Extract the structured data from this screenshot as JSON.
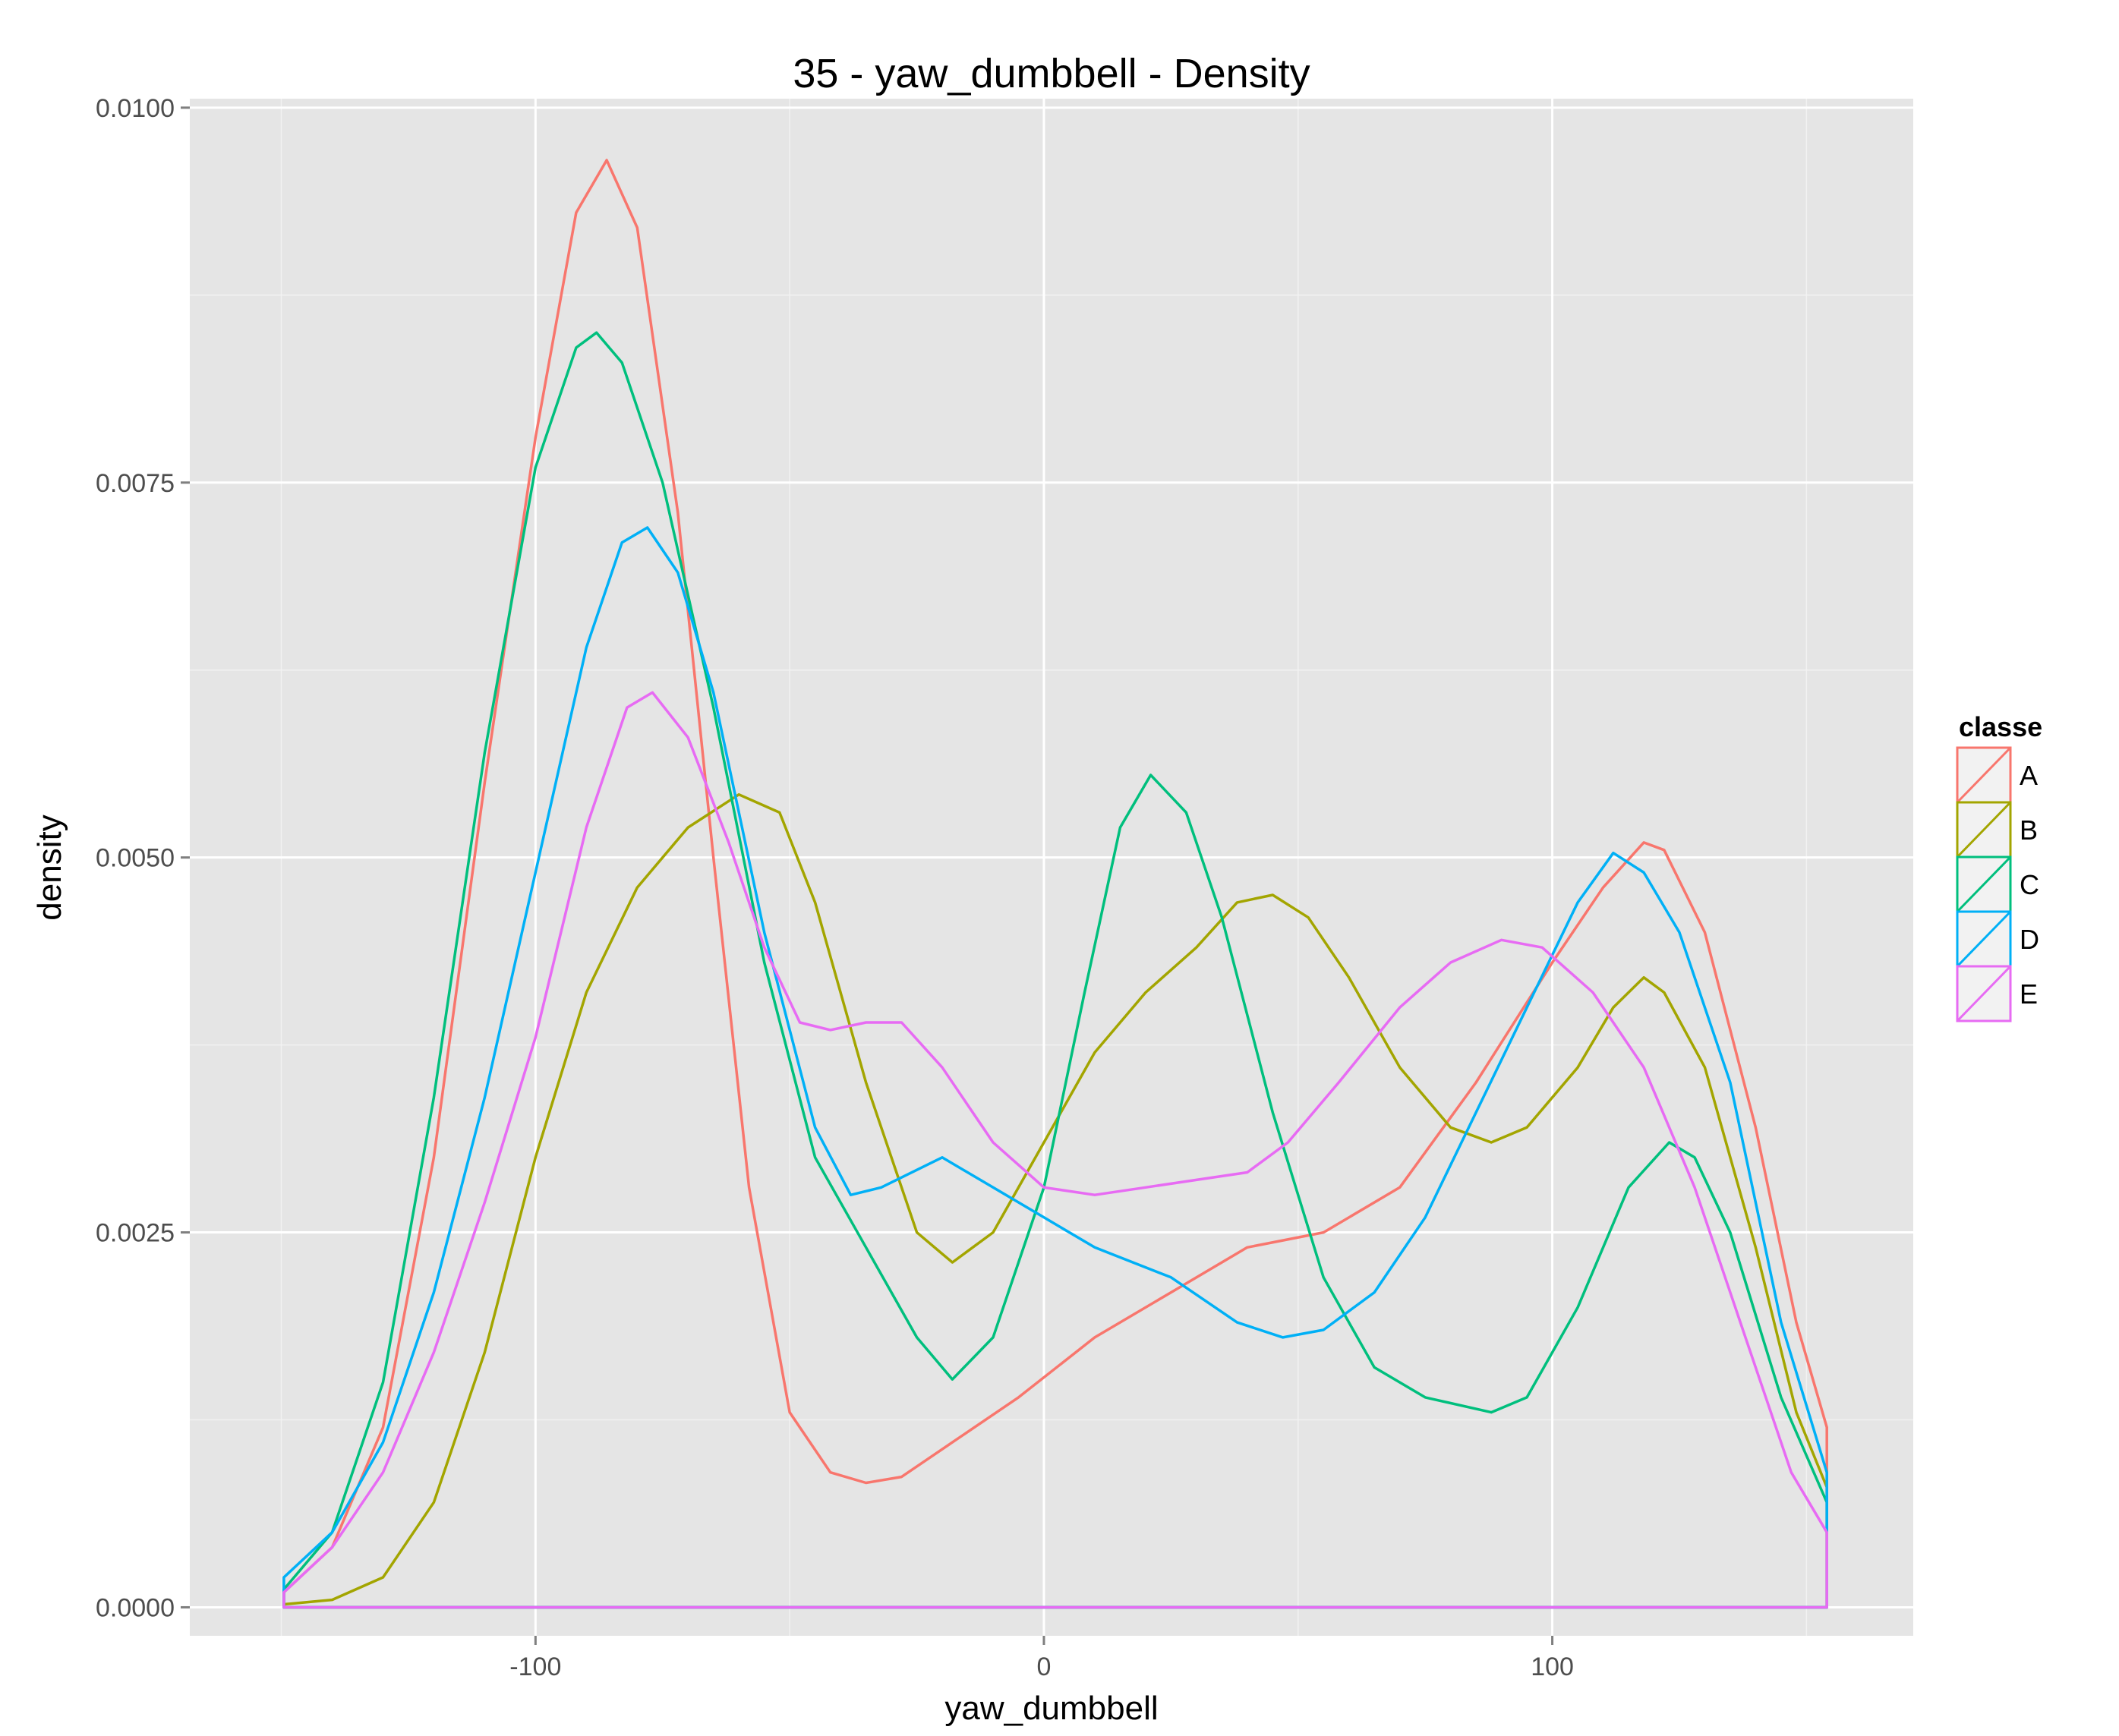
{
  "chart_data": {
    "type": "line",
    "title": "35 - yaw_dumbbell - Density",
    "xlabel": "yaw_dumbbell",
    "ylabel": "density",
    "xlim": [
      -168,
      171
    ],
    "ylim": [
      -0.00019,
      0.01006
    ],
    "x_ticks": [
      -100,
      0,
      100
    ],
    "x_tick_labels": [
      "-100",
      "0",
      "100"
    ],
    "y_ticks": [
      0.0,
      0.0025,
      0.005,
      0.0075,
      0.01
    ],
    "y_tick_labels": [
      "0.0000",
      "0.0025",
      "0.0050",
      "0.0075",
      "0.0100"
    ],
    "x_range": [
      -149.5,
      154
    ],
    "grid": true,
    "legend": {
      "title": "classe",
      "position": "right",
      "entries": [
        "A",
        "B",
        "C",
        "D",
        "E"
      ]
    },
    "series": [
      {
        "name": "A",
        "color": "#F8766D",
        "points": [
          [
            -149.5,
            0.0001
          ],
          [
            -140,
            0.0004
          ],
          [
            -130,
            0.0012
          ],
          [
            -120,
            0.003
          ],
          [
            -110,
            0.0055
          ],
          [
            -100,
            0.0078
          ],
          [
            -92,
            0.0093
          ],
          [
            -86,
            0.00965
          ],
          [
            -80,
            0.0092
          ],
          [
            -72,
            0.0073
          ],
          [
            -65,
            0.005
          ],
          [
            -58,
            0.0028
          ],
          [
            -50,
            0.0013
          ],
          [
            -42,
            0.0009
          ],
          [
            -35,
            0.00083
          ],
          [
            -28,
            0.00087
          ],
          [
            -18,
            0.0011
          ],
          [
            -5,
            0.0014
          ],
          [
            10,
            0.0018
          ],
          [
            25,
            0.0021
          ],
          [
            40,
            0.0024
          ],
          [
            55,
            0.0025
          ],
          [
            70,
            0.0028
          ],
          [
            85,
            0.0035
          ],
          [
            100,
            0.0043
          ],
          [
            110,
            0.0048
          ],
          [
            118,
            0.0051
          ],
          [
            122,
            0.00505
          ],
          [
            130,
            0.0045
          ],
          [
            140,
            0.0032
          ],
          [
            148,
            0.0019
          ],
          [
            154,
            0.0012
          ],
          [
            154,
            0.0
          ]
        ]
      },
      {
        "name": "B",
        "color": "#A3A500",
        "points": [
          [
            -149.5,
            2e-05
          ],
          [
            -140,
            5e-05
          ],
          [
            -130,
            0.0002
          ],
          [
            -120,
            0.0007
          ],
          [
            -110,
            0.0017
          ],
          [
            -100,
            0.003
          ],
          [
            -90,
            0.0041
          ],
          [
            -80,
            0.0048
          ],
          [
            -70,
            0.0052
          ],
          [
            -60,
            0.00542
          ],
          [
            -52,
            0.0053
          ],
          [
            -45,
            0.0047
          ],
          [
            -35,
            0.0035
          ],
          [
            -25,
            0.0025
          ],
          [
            -18,
            0.0023
          ],
          [
            -10,
            0.0025
          ],
          [
            0,
            0.0031
          ],
          [
            10,
            0.0037
          ],
          [
            20,
            0.0041
          ],
          [
            30,
            0.0044
          ],
          [
            38,
            0.0047
          ],
          [
            45,
            0.00475
          ],
          [
            52,
            0.0046
          ],
          [
            60,
            0.0042
          ],
          [
            70,
            0.0036
          ],
          [
            80,
            0.0032
          ],
          [
            88,
            0.0031
          ],
          [
            95,
            0.0032
          ],
          [
            105,
            0.0036
          ],
          [
            112,
            0.004
          ],
          [
            118,
            0.0042
          ],
          [
            122,
            0.0041
          ],
          [
            130,
            0.0036
          ],
          [
            140,
            0.0024
          ],
          [
            148,
            0.0013
          ],
          [
            154,
            0.0008
          ],
          [
            154,
            0.0
          ]
        ]
      },
      {
        "name": "C",
        "color": "#00BF7D",
        "points": [
          [
            -149.5,
            0.00012
          ],
          [
            -140,
            0.0005
          ],
          [
            -130,
            0.0015
          ],
          [
            -120,
            0.0034
          ],
          [
            -110,
            0.0057
          ],
          [
            -100,
            0.0076
          ],
          [
            -92,
            0.0084
          ],
          [
            -88,
            0.0085
          ],
          [
            -83,
            0.0083
          ],
          [
            -75,
            0.0075
          ],
          [
            -65,
            0.006
          ],
          [
            -55,
            0.0043
          ],
          [
            -45,
            0.003
          ],
          [
            -35,
            0.0024
          ],
          [
            -25,
            0.0018
          ],
          [
            -18,
            0.00152
          ],
          [
            -10,
            0.0018
          ],
          [
            0,
            0.0028
          ],
          [
            8,
            0.0041
          ],
          [
            15,
            0.0052
          ],
          [
            21,
            0.00555
          ],
          [
            28,
            0.0053
          ],
          [
            35,
            0.0046
          ],
          [
            45,
            0.0033
          ],
          [
            55,
            0.0022
          ],
          [
            65,
            0.0016
          ],
          [
            75,
            0.0014
          ],
          [
            88,
            0.0013
          ],
          [
            95,
            0.0014
          ],
          [
            105,
            0.002
          ],
          [
            115,
            0.0028
          ],
          [
            123,
            0.0031
          ],
          [
            128,
            0.003
          ],
          [
            135,
            0.0025
          ],
          [
            145,
            0.0014
          ],
          [
            154,
            0.0007
          ],
          [
            154,
            0.0
          ]
        ]
      },
      {
        "name": "D",
        "color": "#00B0F6",
        "points": [
          [
            -149.5,
            0.0002
          ],
          [
            -140,
            0.0005
          ],
          [
            -130,
            0.0011
          ],
          [
            -120,
            0.0021
          ],
          [
            -110,
            0.0034
          ],
          [
            -100,
            0.0049
          ],
          [
            -90,
            0.0064
          ],
          [
            -83,
            0.0071
          ],
          [
            -78,
            0.0072
          ],
          [
            -72,
            0.0069
          ],
          [
            -65,
            0.0061
          ],
          [
            -55,
            0.0045
          ],
          [
            -45,
            0.0032
          ],
          [
            -38,
            0.00275
          ],
          [
            -32,
            0.0028
          ],
          [
            -20,
            0.003
          ],
          [
            -10,
            0.0028
          ],
          [
            0,
            0.0026
          ],
          [
            10,
            0.0024
          ],
          [
            25,
            0.0022
          ],
          [
            38,
            0.0019
          ],
          [
            47,
            0.0018
          ],
          [
            55,
            0.00185
          ],
          [
            65,
            0.0021
          ],
          [
            75,
            0.0026
          ],
          [
            85,
            0.0033
          ],
          [
            95,
            0.004
          ],
          [
            105,
            0.0047
          ],
          [
            112,
            0.00503
          ],
          [
            118,
            0.0049
          ],
          [
            125,
            0.0045
          ],
          [
            135,
            0.0035
          ],
          [
            145,
            0.0019
          ],
          [
            154,
            0.0009
          ],
          [
            154,
            0.0
          ]
        ]
      },
      {
        "name": "E",
        "color": "#E76BF3",
        "points": [
          [
            -149.5,
            0.0001
          ],
          [
            -140,
            0.0004
          ],
          [
            -130,
            0.0009
          ],
          [
            -120,
            0.0017
          ],
          [
            -110,
            0.0027
          ],
          [
            -100,
            0.0038
          ],
          [
            -90,
            0.0052
          ],
          [
            -82,
            0.006
          ],
          [
            -77,
            0.0061
          ],
          [
            -70,
            0.0058
          ],
          [
            -62,
            0.0051
          ],
          [
            -55,
            0.0044
          ],
          [
            -48,
            0.0039
          ],
          [
            -42,
            0.00385
          ],
          [
            -35,
            0.0039
          ],
          [
            -28,
            0.0039
          ],
          [
            -20,
            0.0036
          ],
          [
            -10,
            0.0031
          ],
          [
            0,
            0.0028
          ],
          [
            10,
            0.00275
          ],
          [
            20,
            0.0028
          ],
          [
            30,
            0.00285
          ],
          [
            40,
            0.0029
          ],
          [
            48,
            0.0031
          ],
          [
            58,
            0.0035
          ],
          [
            70,
            0.004
          ],
          [
            80,
            0.0043
          ],
          [
            90,
            0.00445
          ],
          [
            98,
            0.0044
          ],
          [
            108,
            0.0041
          ],
          [
            118,
            0.0036
          ],
          [
            128,
            0.0028
          ],
          [
            138,
            0.0018
          ],
          [
            147,
            0.0009
          ],
          [
            154,
            0.0005
          ],
          [
            154,
            0.0
          ]
        ]
      }
    ]
  }
}
